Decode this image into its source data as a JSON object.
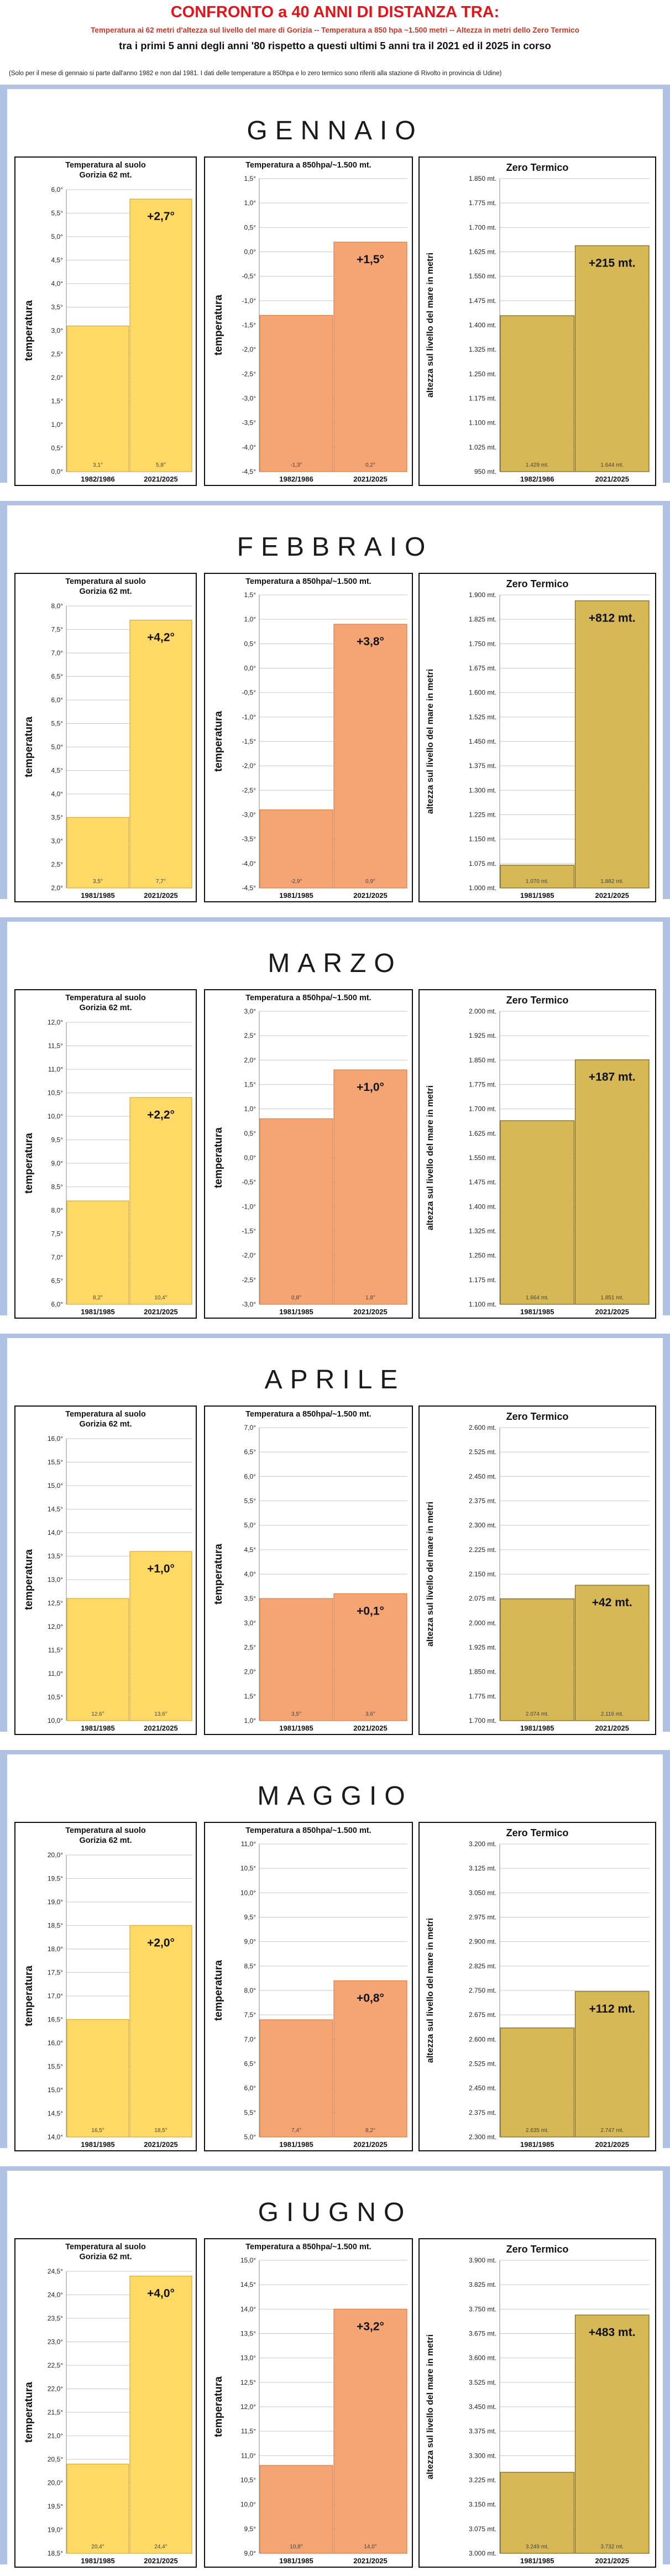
{
  "header": {
    "title": "CONFRONTO a 40 ANNI DI DISTANZA TRA:",
    "subtitle1": "Temperatura ai 62 metri d'altezza sul livello del mare di Gorizia -- Temperatura a 850 hpa ~1.500 metri -- Altezza in metri dello Zero Termico",
    "subtitle2": "tra i primi 5 anni degli anni '80 rispetto a questi ultimi 5 anni tra il 2021 ed il 2025 in corso",
    "note": "(Solo per il mese di gennaio si parte dall'anno 1982 e non dal 1981. I dati delle temperature a 850hpa e lo zero termico sono riferiti alla stazione di Rivolto in provincia di Udine)"
  },
  "colors": {
    "background_frame": "#b0c2e4",
    "surface_bar": "#ffd966",
    "surface_bar_border": "#d4aa3a",
    "hpa_bar": "#f4a573",
    "hpa_bar_border": "#d77d45",
    "zero_bar": "#d6b856",
    "zero_bar_border": "#7a6420",
    "gridline": "#c8c8c8"
  },
  "chart_data": [
    {
      "month": "GENNAIO",
      "charts": [
        {
          "kind": "surface",
          "type": "bar",
          "title": [
            "Temperatura al suolo",
            "Gorizia 62 mt."
          ],
          "ylabel": "temperatura",
          "categories": [
            "1982/1986",
            "2021/2025"
          ],
          "values": [
            3.1,
            5.8
          ],
          "value_labels": [
            "3,1°",
            "5,8°"
          ],
          "diff_label": "+2,7°",
          "ylim": [
            0,
            6
          ],
          "step": 0.5,
          "decimals": 1,
          "unit": "",
          "grid": true
        },
        {
          "kind": "hpa",
          "type": "bar",
          "title": [
            "Temperatura a 850hpa/~1.500 mt."
          ],
          "ylabel": "temperatura",
          "categories": [
            "1982/1986",
            "2021/2025"
          ],
          "values": [
            -1.3,
            0.2
          ],
          "value_labels": [
            "-1,3°",
            "0,2°"
          ],
          "diff_label": "+1,5°",
          "ylim": [
            -4.5,
            1.5
          ],
          "step": 0.5,
          "decimals": 1,
          "unit": "",
          "grid": true
        },
        {
          "kind": "zero",
          "type": "bar",
          "title": [
            "Zero Termico"
          ],
          "ylabel": "altezza  sul  livello  del  mare  in  metri",
          "categories": [
            "1982/1986",
            "2021/2025"
          ],
          "values": [
            1429,
            1644
          ],
          "value_labels": [
            "1.429 mt.",
            "1.644 mt."
          ],
          "diff_label": "+215 mt.",
          "ylim": [
            950,
            1850
          ],
          "step": 75,
          "decimals": 0,
          "unit": " mt.",
          "grid": true
        }
      ]
    },
    {
      "month": "FEBBRAIO",
      "charts": [
        {
          "kind": "surface",
          "type": "bar",
          "title": [
            "Temperatura al suolo",
            "Gorizia 62 mt."
          ],
          "ylabel": "temperatura",
          "categories": [
            "1981/1985",
            "2021/2025"
          ],
          "values": [
            3.5,
            7.7
          ],
          "value_labels": [
            "3,5°",
            "7,7°"
          ],
          "diff_label": "+4,2°",
          "ylim": [
            2,
            8
          ],
          "step": 0.5,
          "decimals": 1,
          "unit": "",
          "grid": true
        },
        {
          "kind": "hpa",
          "type": "bar",
          "title": [
            "Temperatura a 850hpa/~1.500 mt."
          ],
          "ylabel": "temperatura",
          "categories": [
            "1981/1985",
            "2021/2025"
          ],
          "values": [
            -2.9,
            0.9
          ],
          "value_labels": [
            "-2,9°",
            "0,9°"
          ],
          "diff_label": "+3,8°",
          "ylim": [
            -4.5,
            1.5
          ],
          "step": 0.5,
          "decimals": 1,
          "unit": "",
          "grid": true
        },
        {
          "kind": "zero",
          "type": "bar",
          "title": [
            "Zero Termico"
          ],
          "ylabel": "altezza  sul  livello  del  mare  in  metri",
          "categories": [
            "1981/1985",
            "2021/2025"
          ],
          "values": [
            1070,
            1882
          ],
          "value_labels": [
            "1.070 mt.",
            "1.882 mt."
          ],
          "diff_label": "+812 mt.",
          "ylim": [
            1000,
            1900
          ],
          "step": 75,
          "decimals": 0,
          "unit": " mt.",
          "grid": true
        }
      ]
    },
    {
      "month": "MARZO",
      "charts": [
        {
          "kind": "surface",
          "type": "bar",
          "title": [
            "Temperatura al suolo",
            "Gorizia 62 mt."
          ],
          "ylabel": "temperatura",
          "categories": [
            "1981/1985",
            "2021/2025"
          ],
          "values": [
            8.2,
            10.4
          ],
          "value_labels": [
            "8,2°",
            "10,4°"
          ],
          "diff_label": "+2,2°",
          "ylim": [
            6,
            12
          ],
          "step": 0.5,
          "decimals": 1,
          "unit": "",
          "grid": true
        },
        {
          "kind": "hpa",
          "type": "bar",
          "title": [
            "Temperatura a 850hpa/~1.500 mt."
          ],
          "ylabel": "temperatura",
          "categories": [
            "1981/1985",
            "2021/2025"
          ],
          "values": [
            0.8,
            1.8
          ],
          "value_labels": [
            "0,8°",
            "1,8°"
          ],
          "diff_label": "+1,0°",
          "ylim": [
            -3,
            3
          ],
          "step": 0.5,
          "decimals": 1,
          "unit": "",
          "grid": true
        },
        {
          "kind": "zero",
          "type": "bar",
          "title": [
            "Zero Termico"
          ],
          "ylabel": "altezza  sul  livello  del  mare  in  metri",
          "categories": [
            "1981/1985",
            "2021/2025"
          ],
          "values": [
            1664,
            1851
          ],
          "value_labels": [
            "1.664 mt.",
            "1.851 mt."
          ],
          "diff_label": "+187 mt.",
          "ylim": [
            1100,
            2000
          ],
          "step": 75,
          "decimals": 0,
          "unit": " mt.",
          "grid": true
        }
      ]
    },
    {
      "month": "APRILE",
      "charts": [
        {
          "kind": "surface",
          "type": "bar",
          "title": [
            "Temperatura al suolo",
            "Gorizia 62 mt."
          ],
          "ylabel": "temperatura",
          "categories": [
            "1981/1985",
            "2021/2025"
          ],
          "values": [
            12.6,
            13.6
          ],
          "value_labels": [
            "12,6°",
            "13,6°"
          ],
          "diff_label": "+1,0°",
          "ylim": [
            10,
            16
          ],
          "step": 0.5,
          "decimals": 1,
          "unit": "",
          "grid": true
        },
        {
          "kind": "hpa",
          "type": "bar",
          "title": [
            "Temperatura a 850hpa/~1.500 mt."
          ],
          "ylabel": "temperatura",
          "categories": [
            "1981/1985",
            "2021/2025"
          ],
          "values": [
            3.5,
            3.6
          ],
          "value_labels": [
            "3,5°",
            "3,6°"
          ],
          "diff_label": "+0,1°",
          "ylim": [
            1,
            7
          ],
          "step": 0.5,
          "decimals": 1,
          "unit": "",
          "grid": true
        },
        {
          "kind": "zero",
          "type": "bar",
          "title": [
            "Zero Termico"
          ],
          "ylabel": "altezza  sul  livello  del  mare  in  metri",
          "categories": [
            "1981/1985",
            "2021/2025"
          ],
          "values": [
            2074,
            2116
          ],
          "value_labels": [
            "2.074 mt.",
            "2.116 mt."
          ],
          "diff_label": "+42 mt.",
          "ylim": [
            1700,
            2600
          ],
          "step": 75,
          "decimals": 0,
          "unit": " mt.",
          "grid": true
        }
      ]
    },
    {
      "month": "MAGGIO",
      "charts": [
        {
          "kind": "surface",
          "type": "bar",
          "title": [
            "Temperatura al suolo",
            "Gorizia 62 mt."
          ],
          "ylabel": "temperatura",
          "categories": [
            "1981/1985",
            "2021/2025"
          ],
          "values": [
            16.5,
            18.5
          ],
          "value_labels": [
            "16,5°",
            "18,5°"
          ],
          "diff_label": "+2,0°",
          "ylim": [
            14,
            20
          ],
          "step": 0.5,
          "decimals": 1,
          "unit": "",
          "grid": true
        },
        {
          "kind": "hpa",
          "type": "bar",
          "title": [
            "Temperatura a 850hpa/~1.500 mt."
          ],
          "ylabel": "temperatura",
          "categories": [
            "1981/1985",
            "2021/2025"
          ],
          "values": [
            7.4,
            8.2
          ],
          "value_labels": [
            "7,4°",
            "8,2°"
          ],
          "diff_label": "+0,8°",
          "ylim": [
            5,
            11
          ],
          "step": 0.5,
          "decimals": 1,
          "unit": "",
          "grid": true
        },
        {
          "kind": "zero",
          "type": "bar",
          "title": [
            "Zero Termico"
          ],
          "ylabel": "altezza  sul  livello  del  mare  in  metri",
          "categories": [
            "1981/1985",
            "2021/2025"
          ],
          "values": [
            2635,
            2747
          ],
          "value_labels": [
            "2.635 mt.",
            "2.747 mt."
          ],
          "diff_label": "+112 mt.",
          "ylim": [
            2300,
            3200
          ],
          "step": 75,
          "decimals": 0,
          "unit": " mt.",
          "grid": true
        }
      ]
    },
    {
      "month": "GIUGNO",
      "charts": [
        {
          "kind": "surface",
          "type": "bar",
          "title": [
            "Temperatura al suolo",
            "Gorizia 62 mt."
          ],
          "ylabel": "temperatura",
          "categories": [
            "1981/1985",
            "2021/2025"
          ],
          "values": [
            20.4,
            24.4
          ],
          "value_labels": [
            "20,4°",
            "24,4°"
          ],
          "diff_label": "+4,0°",
          "ylim": [
            18.5,
            24.5
          ],
          "step": 0.5,
          "decimals": 1,
          "unit": "",
          "grid": true
        },
        {
          "kind": "hpa",
          "type": "bar",
          "title": [
            "Temperatura a 850hpa/~1.500 mt."
          ],
          "ylabel": "temperatura",
          "categories": [
            "1981/1985",
            "2021/2025"
          ],
          "values": [
            10.8,
            14.0
          ],
          "value_labels": [
            "10,8°",
            "14,0°"
          ],
          "diff_label": "+3,2°",
          "ylim": [
            9,
            15
          ],
          "step": 0.5,
          "decimals": 1,
          "unit": "",
          "grid": true
        },
        {
          "kind": "zero",
          "type": "bar",
          "title": [
            "Zero Termico"
          ],
          "ylabel": "altezza  sul  livello  del  mare  in  metri",
          "categories": [
            "1981/1985",
            "2021/2025"
          ],
          "values": [
            3249,
            3732
          ],
          "value_labels": [
            "3.249 mt.",
            "3.732 mt."
          ],
          "diff_label": "+483 mt.",
          "ylim": [
            3000,
            3900
          ],
          "step": 75,
          "decimals": 0,
          "unit": " mt.",
          "grid": true
        }
      ]
    }
  ]
}
